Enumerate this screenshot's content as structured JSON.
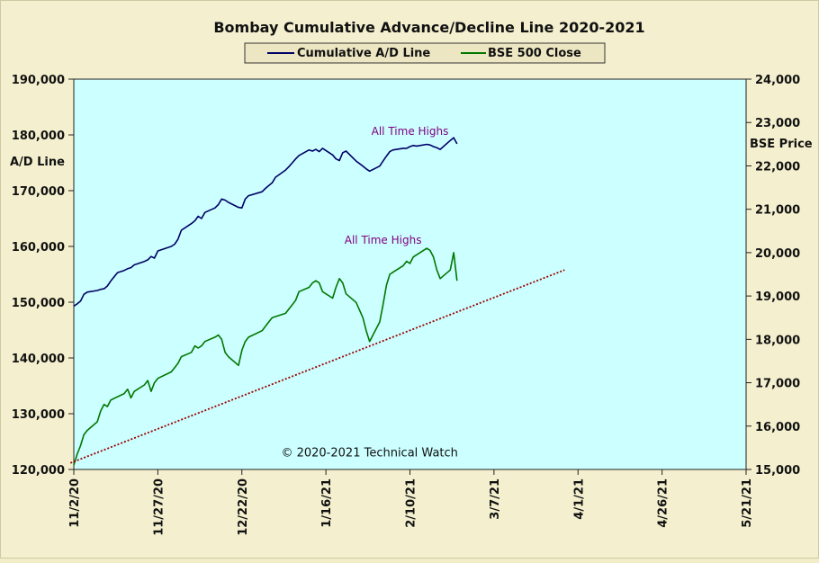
{
  "chart_data": {
    "type": "line",
    "title": "Bombay Cumulative Advance/Decline Line 2020-2021",
    "ylabel_left": "A/D Line",
    "ylabel_right": "BSE Price",
    "ylim_left": [
      120000,
      190000
    ],
    "ylim_right": [
      15000,
      24000
    ],
    "yticks_left": [
      "120,000",
      "130,000",
      "140,000",
      "150,000",
      "160,000",
      "170,000",
      "180,000",
      "190,000"
    ],
    "yticks_right": [
      "15,000",
      "16,000",
      "17,000",
      "18,000",
      "19,000",
      "20,000",
      "21,000",
      "22,000",
      "23,000",
      "24,000"
    ],
    "xlim": [
      "2020-11-02",
      "2021-05-21"
    ],
    "xticks": [
      "11/2/20",
      "11/27/20",
      "12/22/20",
      "1/16/21",
      "2/10/21",
      "3/7/21",
      "4/1/21",
      "4/26/21",
      "5/21/21"
    ],
    "legend": {
      "placement": "top-center",
      "entries": [
        "Cumulative A/D Line",
        "BSE 500 Close"
      ]
    },
    "annotations": [
      {
        "text": "All Time Highs",
        "series": "Cumulative A/D Line",
        "x": "2021-02-10",
        "y": 180000
      },
      {
        "text": "All Time Highs",
        "series": "BSE 500 Close",
        "x": "2021-02-02",
        "y": 20200
      },
      {
        "text": "© 2020-2021 Technical Watch",
        "x": "2021-01-29",
        "y": 15300
      }
    ],
    "background_color": "#ccffff",
    "series": [
      {
        "name": "Cumulative A/D Line",
        "axis": "left",
        "color": "#000066",
        "points": [
          [
            "2020-11-02",
            149300
          ],
          [
            "2020-11-03",
            149700
          ],
          [
            "2020-11-04",
            150200
          ],
          [
            "2020-11-05",
            151400
          ],
          [
            "2020-11-06",
            151800
          ],
          [
            "2020-11-09",
            152100
          ],
          [
            "2020-11-10",
            152300
          ],
          [
            "2020-11-11",
            152400
          ],
          [
            "2020-11-12",
            152900
          ],
          [
            "2020-11-13",
            153800
          ],
          [
            "2020-11-15",
            155300
          ],
          [
            "2020-11-17",
            155700
          ],
          [
            "2020-11-18",
            156000
          ],
          [
            "2020-11-19",
            156200
          ],
          [
            "2020-11-20",
            156700
          ],
          [
            "2020-11-23",
            157300
          ],
          [
            "2020-11-24",
            157600
          ],
          [
            "2020-11-25",
            158200
          ],
          [
            "2020-11-26",
            157900
          ],
          [
            "2020-11-27",
            159200
          ],
          [
            "2020-12-01",
            160000
          ],
          [
            "2020-12-02",
            160400
          ],
          [
            "2020-12-03",
            161300
          ],
          [
            "2020-12-04",
            162900
          ],
          [
            "2020-12-07",
            164100
          ],
          [
            "2020-12-08",
            164600
          ],
          [
            "2020-12-09",
            165400
          ],
          [
            "2020-12-10",
            165000
          ],
          [
            "2020-12-11",
            166100
          ],
          [
            "2020-12-14",
            166900
          ],
          [
            "2020-12-15",
            167500
          ],
          [
            "2020-12-16",
            168500
          ],
          [
            "2020-12-17",
            168300
          ],
          [
            "2020-12-18",
            167900
          ],
          [
            "2020-12-21",
            167000
          ],
          [
            "2020-12-22",
            166900
          ],
          [
            "2020-12-23",
            168500
          ],
          [
            "2020-12-24",
            169100
          ],
          [
            "2020-12-28",
            169800
          ],
          [
            "2020-12-29",
            170400
          ],
          [
            "2020-12-30",
            170900
          ],
          [
            "2020-12-31",
            171400
          ],
          [
            "2021-01-01",
            172400
          ],
          [
            "2021-01-04",
            173700
          ],
          [
            "2021-01-05",
            174300
          ],
          [
            "2021-01-06",
            175000
          ],
          [
            "2021-01-07",
            175700
          ],
          [
            "2021-01-08",
            176300
          ],
          [
            "2021-01-11",
            177300
          ],
          [
            "2021-01-12",
            177100
          ],
          [
            "2021-01-13",
            177400
          ],
          [
            "2021-01-14",
            177000
          ],
          [
            "2021-01-15",
            177600
          ],
          [
            "2021-01-18",
            176400
          ],
          [
            "2021-01-19",
            175700
          ],
          [
            "2021-01-20",
            175400
          ],
          [
            "2021-01-21",
            176800
          ],
          [
            "2021-01-22",
            177100
          ],
          [
            "2021-01-25",
            175300
          ],
          [
            "2021-01-27",
            174400
          ],
          [
            "2021-01-28",
            173900
          ],
          [
            "2021-01-29",
            173500
          ],
          [
            "2021-02-01",
            174400
          ],
          [
            "2021-02-02",
            175300
          ],
          [
            "2021-02-03",
            176200
          ],
          [
            "2021-02-04",
            177000
          ],
          [
            "2021-02-05",
            177300
          ],
          [
            "2021-02-08",
            177600
          ],
          [
            "2021-02-09",
            177600
          ],
          [
            "2021-02-10",
            177900
          ],
          [
            "2021-02-11",
            178100
          ],
          [
            "2021-02-12",
            178000
          ],
          [
            "2021-02-15",
            178300
          ],
          [
            "2021-02-16",
            178200
          ],
          [
            "2021-02-17",
            177900
          ],
          [
            "2021-02-18",
            177700
          ],
          [
            "2021-02-19",
            177400
          ],
          [
            "2021-02-22",
            179000
          ],
          [
            "2021-02-23",
            179500
          ],
          [
            "2021-02-24",
            178400
          ]
        ]
      },
      {
        "name": "BSE 500 Close",
        "axis": "right",
        "color": "#007700",
        "points": [
          [
            "2020-11-02",
            15100
          ],
          [
            "2020-11-03",
            15350
          ],
          [
            "2020-11-04",
            15550
          ],
          [
            "2020-11-05",
            15800
          ],
          [
            "2020-11-06",
            15900
          ],
          [
            "2020-11-09",
            16100
          ],
          [
            "2020-11-10",
            16350
          ],
          [
            "2020-11-11",
            16500
          ],
          [
            "2020-11-12",
            16450
          ],
          [
            "2020-11-13",
            16600
          ],
          [
            "2020-11-17",
            16750
          ],
          [
            "2020-11-18",
            16850
          ],
          [
            "2020-11-19",
            16650
          ],
          [
            "2020-11-20",
            16800
          ],
          [
            "2020-11-23",
            16950
          ],
          [
            "2020-11-24",
            17050
          ],
          [
            "2020-11-25",
            16800
          ],
          [
            "2020-11-26",
            17000
          ],
          [
            "2020-11-27",
            17100
          ],
          [
            "2020-12-01",
            17250
          ],
          [
            "2020-12-02",
            17350
          ],
          [
            "2020-12-03",
            17450
          ],
          [
            "2020-12-04",
            17600
          ],
          [
            "2020-12-07",
            17700
          ],
          [
            "2020-12-08",
            17850
          ],
          [
            "2020-12-09",
            17800
          ],
          [
            "2020-12-10",
            17850
          ],
          [
            "2020-12-11",
            17950
          ],
          [
            "2020-12-14",
            18050
          ],
          [
            "2020-12-15",
            18100
          ],
          [
            "2020-12-16",
            18000
          ],
          [
            "2020-12-17",
            17700
          ],
          [
            "2020-12-18",
            17600
          ],
          [
            "2020-12-21",
            17400
          ],
          [
            "2020-12-22",
            17750
          ],
          [
            "2020-12-23",
            17950
          ],
          [
            "2020-12-24",
            18050
          ],
          [
            "2020-12-28",
            18200
          ],
          [
            "2020-12-29",
            18300
          ],
          [
            "2020-12-30",
            18400
          ],
          [
            "2020-12-31",
            18500
          ],
          [
            "2021-01-04",
            18600
          ],
          [
            "2021-01-05",
            18700
          ],
          [
            "2021-01-06",
            18800
          ],
          [
            "2021-01-07",
            18900
          ],
          [
            "2021-01-08",
            19100
          ],
          [
            "2021-01-11",
            19200
          ],
          [
            "2021-01-12",
            19300
          ],
          [
            "2021-01-13",
            19350
          ],
          [
            "2021-01-14",
            19300
          ],
          [
            "2021-01-15",
            19100
          ],
          [
            "2021-01-18",
            18950
          ],
          [
            "2021-01-19",
            19200
          ],
          [
            "2021-01-20",
            19400
          ],
          [
            "2021-01-21",
            19300
          ],
          [
            "2021-01-22",
            19050
          ],
          [
            "2021-01-25",
            18850
          ],
          [
            "2021-01-27",
            18500
          ],
          [
            "2021-01-28",
            18200
          ],
          [
            "2021-01-29",
            17950
          ],
          [
            "2021-02-01",
            18400
          ],
          [
            "2021-02-02",
            18800
          ],
          [
            "2021-02-03",
            19250
          ],
          [
            "2021-02-04",
            19500
          ],
          [
            "2021-02-05",
            19550
          ],
          [
            "2021-02-08",
            19700
          ],
          [
            "2021-02-09",
            19800
          ],
          [
            "2021-02-10",
            19750
          ],
          [
            "2021-02-11",
            19900
          ],
          [
            "2021-02-12",
            19950
          ],
          [
            "2021-02-15",
            20100
          ],
          [
            "2021-02-16",
            20050
          ],
          [
            "2021-02-17",
            19900
          ],
          [
            "2021-02-18",
            19600
          ],
          [
            "2021-02-19",
            19400
          ],
          [
            "2021-02-22",
            19600
          ],
          [
            "2021-02-23",
            20000
          ],
          [
            "2021-02-24",
            19350
          ]
        ]
      },
      {
        "name": "",
        "axis": "right",
        "style": "dotted-trendline",
        "color": "#990000",
        "points": [
          [
            "2020-11-01",
            15150
          ],
          [
            "2021-03-28",
            19600
          ]
        ]
      }
    ]
  }
}
